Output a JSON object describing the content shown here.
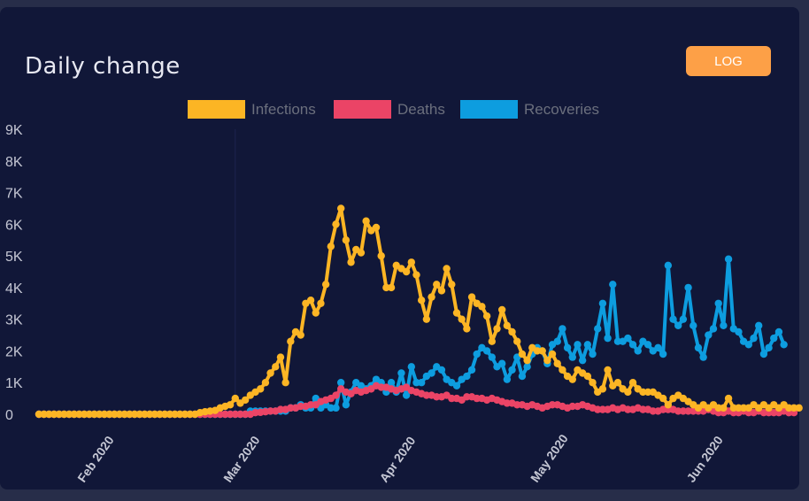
{
  "header": {
    "title": "Daily change",
    "log_button": "LOG"
  },
  "colors": {
    "infections": "#fcb524",
    "deaths": "#eb4466",
    "recoveries": "#0d9ddf",
    "grid": "#1e2550",
    "tick": "#c5c7d4",
    "legend_text": "#6b6f7d",
    "card": "#111738"
  },
  "chart_data": {
    "type": "line",
    "title": "Daily change",
    "xlabel": "",
    "ylabel": "",
    "ylim": [
      0,
      9000
    ],
    "yticks": [
      0,
      1000,
      2000,
      3000,
      4000,
      5000,
      6000,
      7000,
      8000,
      9000
    ],
    "ytick_labels": [
      "0",
      "1K",
      "2K",
      "3K",
      "4K",
      "5K",
      "6K",
      "7K",
      "8K",
      "9K"
    ],
    "x_start": "2020-01-22",
    "xlim_days": [
      0,
      150
    ],
    "xticks": [
      {
        "label": "Feb 2020",
        "day": 10
      },
      {
        "label": "Mar 2020",
        "day": 39
      },
      {
        "label": "Apr 2020",
        "day": 70
      },
      {
        "label": "May 2020",
        "day": 100
      },
      {
        "label": "Jun 2020",
        "day": 131
      }
    ],
    "grid_days": [
      39
    ],
    "legend": [
      {
        "name": "Infections",
        "key": "infections"
      },
      {
        "name": "Deaths",
        "key": "deaths"
      },
      {
        "name": "Recoveries",
        "key": "recoveries"
      }
    ],
    "series": [
      {
        "name": "Infections",
        "key": "infections",
        "values": [
          0,
          0,
          0,
          0,
          0,
          0,
          0,
          0,
          0,
          0,
          0,
          0,
          0,
          0,
          0,
          0,
          0,
          0,
          0,
          0,
          0,
          0,
          0,
          0,
          0,
          0,
          0,
          0,
          0,
          0,
          0,
          0,
          50,
          80,
          100,
          120,
          200,
          250,
          300,
          500,
          350,
          450,
          600,
          700,
          800,
          1000,
          1300,
          1500,
          1800,
          1000,
          2300,
          2600,
          2500,
          3500,
          3600,
          3200,
          3500,
          4100,
          5300,
          6000,
          6500,
          5500,
          4800,
          5200,
          5100,
          6100,
          5800,
          5900,
          5000,
          4000,
          4000,
          4700,
          4600,
          4500,
          4800,
          4400,
          3600,
          3000,
          3700,
          4100,
          3900,
          4600,
          4100,
          3200,
          3000,
          2700,
          3700,
          3500,
          3400,
          3100,
          2300,
          2700,
          3300,
          2800,
          2600,
          2300,
          1900,
          1700,
          2100,
          2000,
          2000,
          1700,
          1900,
          1600,
          1400,
          1200,
          1100,
          1400,
          1300,
          1200,
          1000,
          700,
          800,
          1400,
          900,
          1000,
          800,
          700,
          1000,
          800,
          700,
          700,
          700,
          600,
          500,
          300,
          500,
          600,
          500,
          400,
          300,
          200,
          300,
          200,
          300,
          200,
          200,
          500,
          200,
          200,
          200,
          200,
          300,
          200,
          300,
          200,
          300,
          200,
          300,
          200,
          200,
          200
        ]
      },
      {
        "name": "Deaths",
        "key": "deaths",
        "values": [
          0,
          0,
          0,
          0,
          0,
          0,
          0,
          0,
          0,
          0,
          0,
          0,
          0,
          0,
          0,
          0,
          0,
          0,
          0,
          0,
          0,
          0,
          0,
          0,
          0,
          0,
          0,
          0,
          0,
          0,
          0,
          0,
          0,
          0,
          0,
          0,
          0,
          0,
          0,
          0,
          0,
          0,
          0,
          50,
          60,
          80,
          100,
          100,
          150,
          150,
          200,
          200,
          250,
          250,
          300,
          300,
          400,
          450,
          500,
          600,
          800,
          700,
          650,
          750,
          700,
          750,
          800,
          900,
          850,
          850,
          800,
          750,
          800,
          850,
          750,
          700,
          650,
          600,
          600,
          550,
          550,
          600,
          500,
          500,
          450,
          550,
          550,
          500,
          500,
          450,
          500,
          450,
          400,
          350,
          350,
          300,
          300,
          250,
          300,
          250,
          200,
          250,
          300,
          300,
          250,
          200,
          250,
          250,
          300,
          250,
          200,
          150,
          150,
          150,
          200,
          150,
          200,
          150,
          150,
          200,
          150,
          150,
          100,
          100,
          150,
          150,
          150,
          100,
          100,
          100,
          100,
          100,
          100,
          150,
          100,
          50,
          50,
          100,
          50,
          50,
          100,
          50,
          50,
          100,
          50,
          50,
          50,
          50,
          100,
          50,
          50
        ]
      },
      {
        "name": "Recoveries",
        "key": "recoveries",
        "values": [
          0,
          0,
          0,
          0,
          0,
          0,
          0,
          0,
          0,
          0,
          0,
          0,
          0,
          0,
          0,
          0,
          0,
          0,
          0,
          0,
          0,
          0,
          0,
          0,
          0,
          0,
          0,
          0,
          0,
          0,
          0,
          0,
          0,
          0,
          0,
          0,
          0,
          0,
          0,
          0,
          0,
          0,
          100,
          100,
          100,
          100,
          100,
          100,
          100,
          100,
          200,
          200,
          300,
          200,
          200,
          500,
          200,
          300,
          200,
          200,
          1000,
          300,
          700,
          1000,
          900,
          800,
          900,
          1100,
          1000,
          700,
          1000,
          700,
          1300,
          600,
          1500,
          1000,
          1000,
          1200,
          1300,
          1500,
          1400,
          1100,
          1000,
          900,
          1100,
          1200,
          1400,
          1900,
          2100,
          2000,
          1800,
          1500,
          1600,
          1100,
          1400,
          1800,
          1200,
          1500,
          1900,
          2100,
          2000,
          1600,
          2200,
          2300,
          2700,
          2100,
          1800,
          2200,
          1700,
          2200,
          1900,
          2700,
          3500,
          2400,
          4100,
          2300,
          2300,
          2400,
          2200,
          2000,
          2300,
          2200,
          2000,
          2100,
          1900,
          4700,
          3000,
          2800,
          3000,
          4000,
          2800,
          2100,
          1800,
          2500,
          2700,
          3500,
          2800,
          4900,
          2700,
          2600,
          2300,
          2200,
          2400,
          2800,
          1900,
          2100,
          2400,
          2600,
          2200
        ]
      }
    ]
  }
}
